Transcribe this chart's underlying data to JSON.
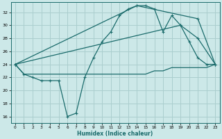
{
  "xlabel": "Humidex (Indice chaleur)",
  "bg_color": "#cce8e8",
  "grid_color": "#aacece",
  "line_color": "#1a6b6b",
  "xlim": [
    -0.5,
    23.5
  ],
  "ylim": [
    15,
    33.5
  ],
  "yticks": [
    16,
    18,
    20,
    22,
    24,
    26,
    28,
    30,
    32
  ],
  "xticks": [
    0,
    1,
    2,
    3,
    4,
    5,
    6,
    7,
    8,
    9,
    10,
    11,
    12,
    13,
    14,
    15,
    16,
    17,
    18,
    19,
    20,
    21,
    22,
    23
  ],
  "line1_x": [
    0,
    1,
    2,
    3,
    4,
    5,
    6,
    7,
    8,
    9,
    10,
    11,
    12,
    13,
    14,
    15,
    16,
    17,
    18,
    19,
    20,
    21,
    22,
    23
  ],
  "line1_y": [
    24,
    22.5,
    22,
    21.5,
    21.5,
    21.5,
    16,
    16.5,
    22,
    25,
    27.5,
    29,
    31.5,
    32.5,
    33,
    33,
    32.5,
    29,
    31.5,
    30,
    27.5,
    25,
    24,
    24
  ],
  "line2_x": [
    0,
    1,
    2,
    3,
    4,
    5,
    6,
    7,
    8,
    9,
    10,
    11,
    12,
    13,
    14,
    15,
    16,
    17,
    18,
    19,
    20,
    21,
    22,
    23
  ],
  "line2_y": [
    24,
    22.5,
    22.5,
    22.5,
    22.5,
    22.5,
    22.5,
    22.5,
    22.5,
    22.5,
    22.5,
    22.5,
    22.5,
    22.5,
    22.5,
    22.5,
    23,
    23,
    23.5,
    23.5,
    23.5,
    23.5,
    23.5,
    24
  ],
  "line3_x": [
    0,
    14,
    21,
    23
  ],
  "line3_y": [
    24,
    33,
    31,
    24
  ],
  "line4_x": [
    0,
    19,
    21,
    23
  ],
  "line4_y": [
    24,
    30,
    28,
    24
  ]
}
